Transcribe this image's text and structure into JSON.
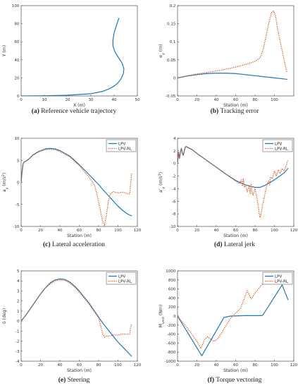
{
  "colors": {
    "blue": "#1f77b4",
    "orange": "#d95319",
    "axis": "#333333"
  },
  "chart_data": [
    {
      "id": "a",
      "type": "line",
      "caption_label": "(a)",
      "caption_text": "Reference vehicle trajectory",
      "xlabel": "X (m)",
      "ylabel": "Y (m)",
      "xlim": [
        0,
        50
      ],
      "ylim": [
        0,
        100
      ],
      "xticks": [
        0,
        10,
        20,
        30,
        40,
        50
      ],
      "yticks": [
        0,
        20,
        40,
        60,
        80,
        100
      ],
      "legend": null,
      "series": [
        {
          "color": "blue",
          "dash": false,
          "x": [
            0,
            10,
            20,
            30,
            35,
            38,
            40,
            41.5,
            43,
            44,
            44.2,
            43.5,
            42,
            40.5,
            39.5,
            39.5,
            40,
            41,
            42
          ],
          "y": [
            0,
            0.2,
            0.8,
            2.5,
            5,
            8,
            11,
            14,
            19,
            25,
            30,
            36,
            42,
            48,
            55,
            62,
            70,
            78,
            86
          ]
        }
      ]
    },
    {
      "id": "b",
      "type": "line",
      "caption_label": "(b)",
      "caption_text": "Tracking error",
      "xlabel": "Station (m)",
      "ylabel": "e_y (m)",
      "xlim": [
        0,
        120
      ],
      "ylim": [
        -0.05,
        0.2
      ],
      "xticks": [
        0,
        20,
        40,
        60,
        80,
        100
      ],
      "yticks": [
        -0.05,
        0,
        0.05,
        0.1,
        0.15,
        0.2
      ],
      "legend": null,
      "series": [
        {
          "color": "blue",
          "dash": false,
          "x": [
            0,
            10,
            20,
            30,
            40,
            50,
            60,
            70,
            80,
            90,
            100,
            113
          ],
          "y": [
            0,
            0.005,
            0.009,
            0.012,
            0.013,
            0.013,
            0.012,
            0.009,
            0.006,
            0.003,
            0.0,
            -0.004
          ]
        },
        {
          "color": "orange",
          "dash": true,
          "x": [
            0,
            10,
            20,
            30,
            40,
            50,
            60,
            70,
            75,
            80,
            85,
            88,
            91,
            94,
            97,
            99,
            101,
            103,
            106,
            110,
            113
          ],
          "y": [
            0,
            0.006,
            0.011,
            0.015,
            0.019,
            0.024,
            0.03,
            0.037,
            0.041,
            0.046,
            0.055,
            0.075,
            0.11,
            0.15,
            0.18,
            0.185,
            0.175,
            0.14,
            0.1,
            0.05,
            0.015
          ]
        }
      ]
    },
    {
      "id": "c",
      "type": "line",
      "caption_label": "(c)",
      "caption_text": "Lateral acceleration",
      "xlabel": "Station (m)",
      "ylabel": "a_y (m/s^2)",
      "xlim": [
        0,
        120
      ],
      "ylim": [
        -10,
        10
      ],
      "xticks": [
        0,
        20,
        40,
        60,
        80,
        100,
        120
      ],
      "yticks": [
        -10,
        -5,
        0,
        5,
        10
      ],
      "legend": [
        "LPV",
        "LPV-RL"
      ],
      "series": [
        {
          "name": "LPV",
          "color": "blue",
          "dash": false,
          "x": [
            0,
            1,
            2,
            3,
            5,
            8,
            12,
            18,
            25,
            30,
            35,
            40,
            50,
            60,
            70,
            80,
            85,
            90,
            95,
            100,
            105,
            110,
            114
          ],
          "y": [
            0,
            2.5,
            4.2,
            4.6,
            4.8,
            5.3,
            6.2,
            7.0,
            7.6,
            7.7,
            7.6,
            7.2,
            6.0,
            4.0,
            1.8,
            -0.5,
            -1.8,
            -3.0,
            -4.2,
            -5.4,
            -6.4,
            -7.2,
            -7.6
          ]
        },
        {
          "name": "LPV-RL",
          "color": "orange",
          "dash": true,
          "x": [
            0,
            1,
            2,
            3,
            5,
            8,
            12,
            18,
            25,
            30,
            35,
            40,
            50,
            60,
            65,
            70,
            72,
            74,
            76,
            78,
            80,
            82,
            84,
            86,
            88,
            90,
            92,
            95,
            100,
            105,
            110,
            112,
            113,
            114
          ],
          "y": [
            0,
            2.5,
            4.2,
            4.6,
            4.8,
            5.3,
            6.1,
            6.9,
            7.4,
            7.5,
            7.4,
            7.0,
            5.8,
            3.8,
            2.5,
            1.2,
            0.6,
            0.0,
            -0.8,
            -2.5,
            -4.5,
            -6.5,
            -8.8,
            -9.8,
            -7.5,
            -4.5,
            -2.6,
            -2.1,
            -2.4,
            -2.2,
            -2.6,
            -2.6,
            -0.5,
            2.0
          ]
        }
      ]
    },
    {
      "id": "d",
      "type": "line",
      "caption_label": "(d)",
      "caption_text": "Lateral jerk",
      "xlabel": "Station (m)",
      "ylabel": "a'_y (m/s^3)",
      "xlim": [
        0,
        120
      ],
      "ylim": [
        -10,
        4
      ],
      "xticks": [
        0,
        20,
        40,
        60,
        80,
        100,
        120
      ],
      "yticks": [
        -10,
        -8,
        -6,
        -4,
        -2,
        0,
        2,
        4
      ],
      "legend": [
        "LPV",
        "LPV-RL"
      ],
      "series": [
        {
          "name": "LPV",
          "color": "blue",
          "dash": false,
          "x": [
            0,
            1,
            2,
            3,
            4,
            5,
            6,
            7,
            8,
            9,
            10,
            15,
            20,
            30,
            40,
            50,
            60,
            70,
            80,
            85,
            90,
            100,
            110,
            114
          ],
          "y": [
            0,
            1.8,
            0.8,
            1.8,
            2.4,
            1.6,
            1.3,
            2.0,
            2.6,
            2.7,
            2.6,
            2.2,
            1.6,
            0.5,
            -0.6,
            -1.7,
            -2.7,
            -3.4,
            -3.8,
            -3.8,
            -3.5,
            -2.6,
            -1.5,
            -0.8
          ]
        },
        {
          "name": "LPV-RL",
          "color": "orange",
          "dash": true,
          "x": [
            0,
            1,
            2,
            3,
            4,
            5,
            6,
            7,
            8,
            9,
            10,
            15,
            20,
            30,
            40,
            50,
            60,
            64,
            66,
            67,
            68,
            69,
            70,
            72,
            74,
            75,
            76,
            77,
            78,
            80,
            82,
            84,
            85,
            86,
            88,
            90,
            92,
            94,
            95,
            96,
            98,
            100,
            102,
            104,
            106,
            108,
            110,
            112,
            114
          ],
          "y": [
            0,
            1.8,
            0.8,
            1.8,
            2.4,
            1.6,
            1.3,
            2.0,
            2.6,
            2.7,
            2.6,
            2.2,
            1.6,
            0.5,
            -0.6,
            -1.7,
            -2.8,
            -3.2,
            -2.6,
            -3.6,
            -2.4,
            -3.8,
            -3.4,
            -4.5,
            -3.5,
            -4.8,
            -3.2,
            -4.6,
            -5.0,
            -4.0,
            -5.5,
            -7.5,
            -8.6,
            -8.2,
            -6.5,
            -5.0,
            -3.6,
            -2.8,
            -3.4,
            -2.2,
            -2.4,
            -1.2,
            -2.0,
            -1.0,
            -1.6,
            -0.8,
            -1.2,
            -0.4,
            0.6
          ]
        }
      ]
    },
    {
      "id": "e",
      "type": "line",
      "caption_label": "(e)",
      "caption_text": "Steering",
      "xlabel": "Station (m)",
      "ylabel": "δ (deg)",
      "xlim": [
        0,
        120
      ],
      "ylim": [
        -4,
        5
      ],
      "xticks": [
        0,
        20,
        40,
        60,
        80,
        100,
        120
      ],
      "yticks": [
        -4,
        -3,
        -2,
        -1,
        0,
        1,
        2,
        3,
        4,
        5
      ],
      "legend": [
        "LPV",
        "LPV-RL"
      ],
      "series": [
        {
          "name": "LPV",
          "color": "blue",
          "dash": false,
          "x": [
            0,
            5,
            10,
            15,
            20,
            25,
            30,
            35,
            40,
            45,
            50,
            55,
            60,
            65,
            70,
            75,
            80,
            85,
            90,
            95,
            100,
            105,
            110,
            114
          ],
          "y": [
            0,
            0.6,
            1.3,
            2.0,
            2.7,
            3.3,
            3.8,
            4.1,
            4.2,
            4.15,
            3.9,
            3.5,
            3.0,
            2.4,
            1.8,
            1.1,
            0.4,
            -0.3,
            -0.9,
            -1.5,
            -2.1,
            -2.6,
            -3.1,
            -3.5
          ]
        },
        {
          "name": "LPV-RL",
          "color": "orange",
          "dash": true,
          "x": [
            0,
            5,
            10,
            15,
            20,
            25,
            30,
            35,
            40,
            45,
            50,
            55,
            60,
            65,
            70,
            75,
            80,
            82,
            84,
            86,
            88,
            90,
            95,
            100,
            105,
            110,
            112,
            113,
            114
          ],
          "y": [
            0,
            0.6,
            1.3,
            2.0,
            2.7,
            3.3,
            3.7,
            4.0,
            4.1,
            4.05,
            3.8,
            3.4,
            2.9,
            2.3,
            1.7,
            1.0,
            0.3,
            -0.4,
            -1.2,
            -1.6,
            -1.5,
            -1.5,
            -1.4,
            -1.4,
            -1.3,
            -1.3,
            -1.3,
            -0.7,
            -0.3
          ]
        }
      ]
    },
    {
      "id": "f",
      "type": "line",
      "caption_label": "(f)",
      "caption_text": "Torque vectoring",
      "xlabel": "Station (m)",
      "ylabel": "M_vect (Nm)",
      "xlim": [
        0,
        120
      ],
      "ylim": [
        -1000,
        1000
      ],
      "xticks": [
        0,
        20,
        40,
        60,
        80,
        100,
        120
      ],
      "yticks": [
        -1000,
        -800,
        -600,
        -400,
        -200,
        0,
        200,
        400,
        600,
        800,
        1000
      ],
      "legend": [
        "LPV",
        "LPV-RL"
      ],
      "series": [
        {
          "name": "LPV",
          "color": "blue",
          "dash": false,
          "x": [
            0,
            25,
            48,
            55,
            70,
            87,
            88,
            108,
            114
          ],
          "y": [
            0,
            -880,
            -30,
            0,
            10,
            10,
            20,
            690,
            360
          ]
        },
        {
          "name": "LPV-RL",
          "color": "orange",
          "dash": true,
          "x": [
            0,
            10,
            20,
            24,
            28,
            31,
            35,
            38,
            42,
            55,
            65,
            72,
            76,
            80,
            90,
            100,
            114
          ],
          "y": [
            0,
            -260,
            -560,
            -720,
            -520,
            -460,
            -520,
            -560,
            -490,
            -40,
            170,
            560,
            380,
            510,
            770,
            770,
            760
          ]
        }
      ]
    }
  ]
}
